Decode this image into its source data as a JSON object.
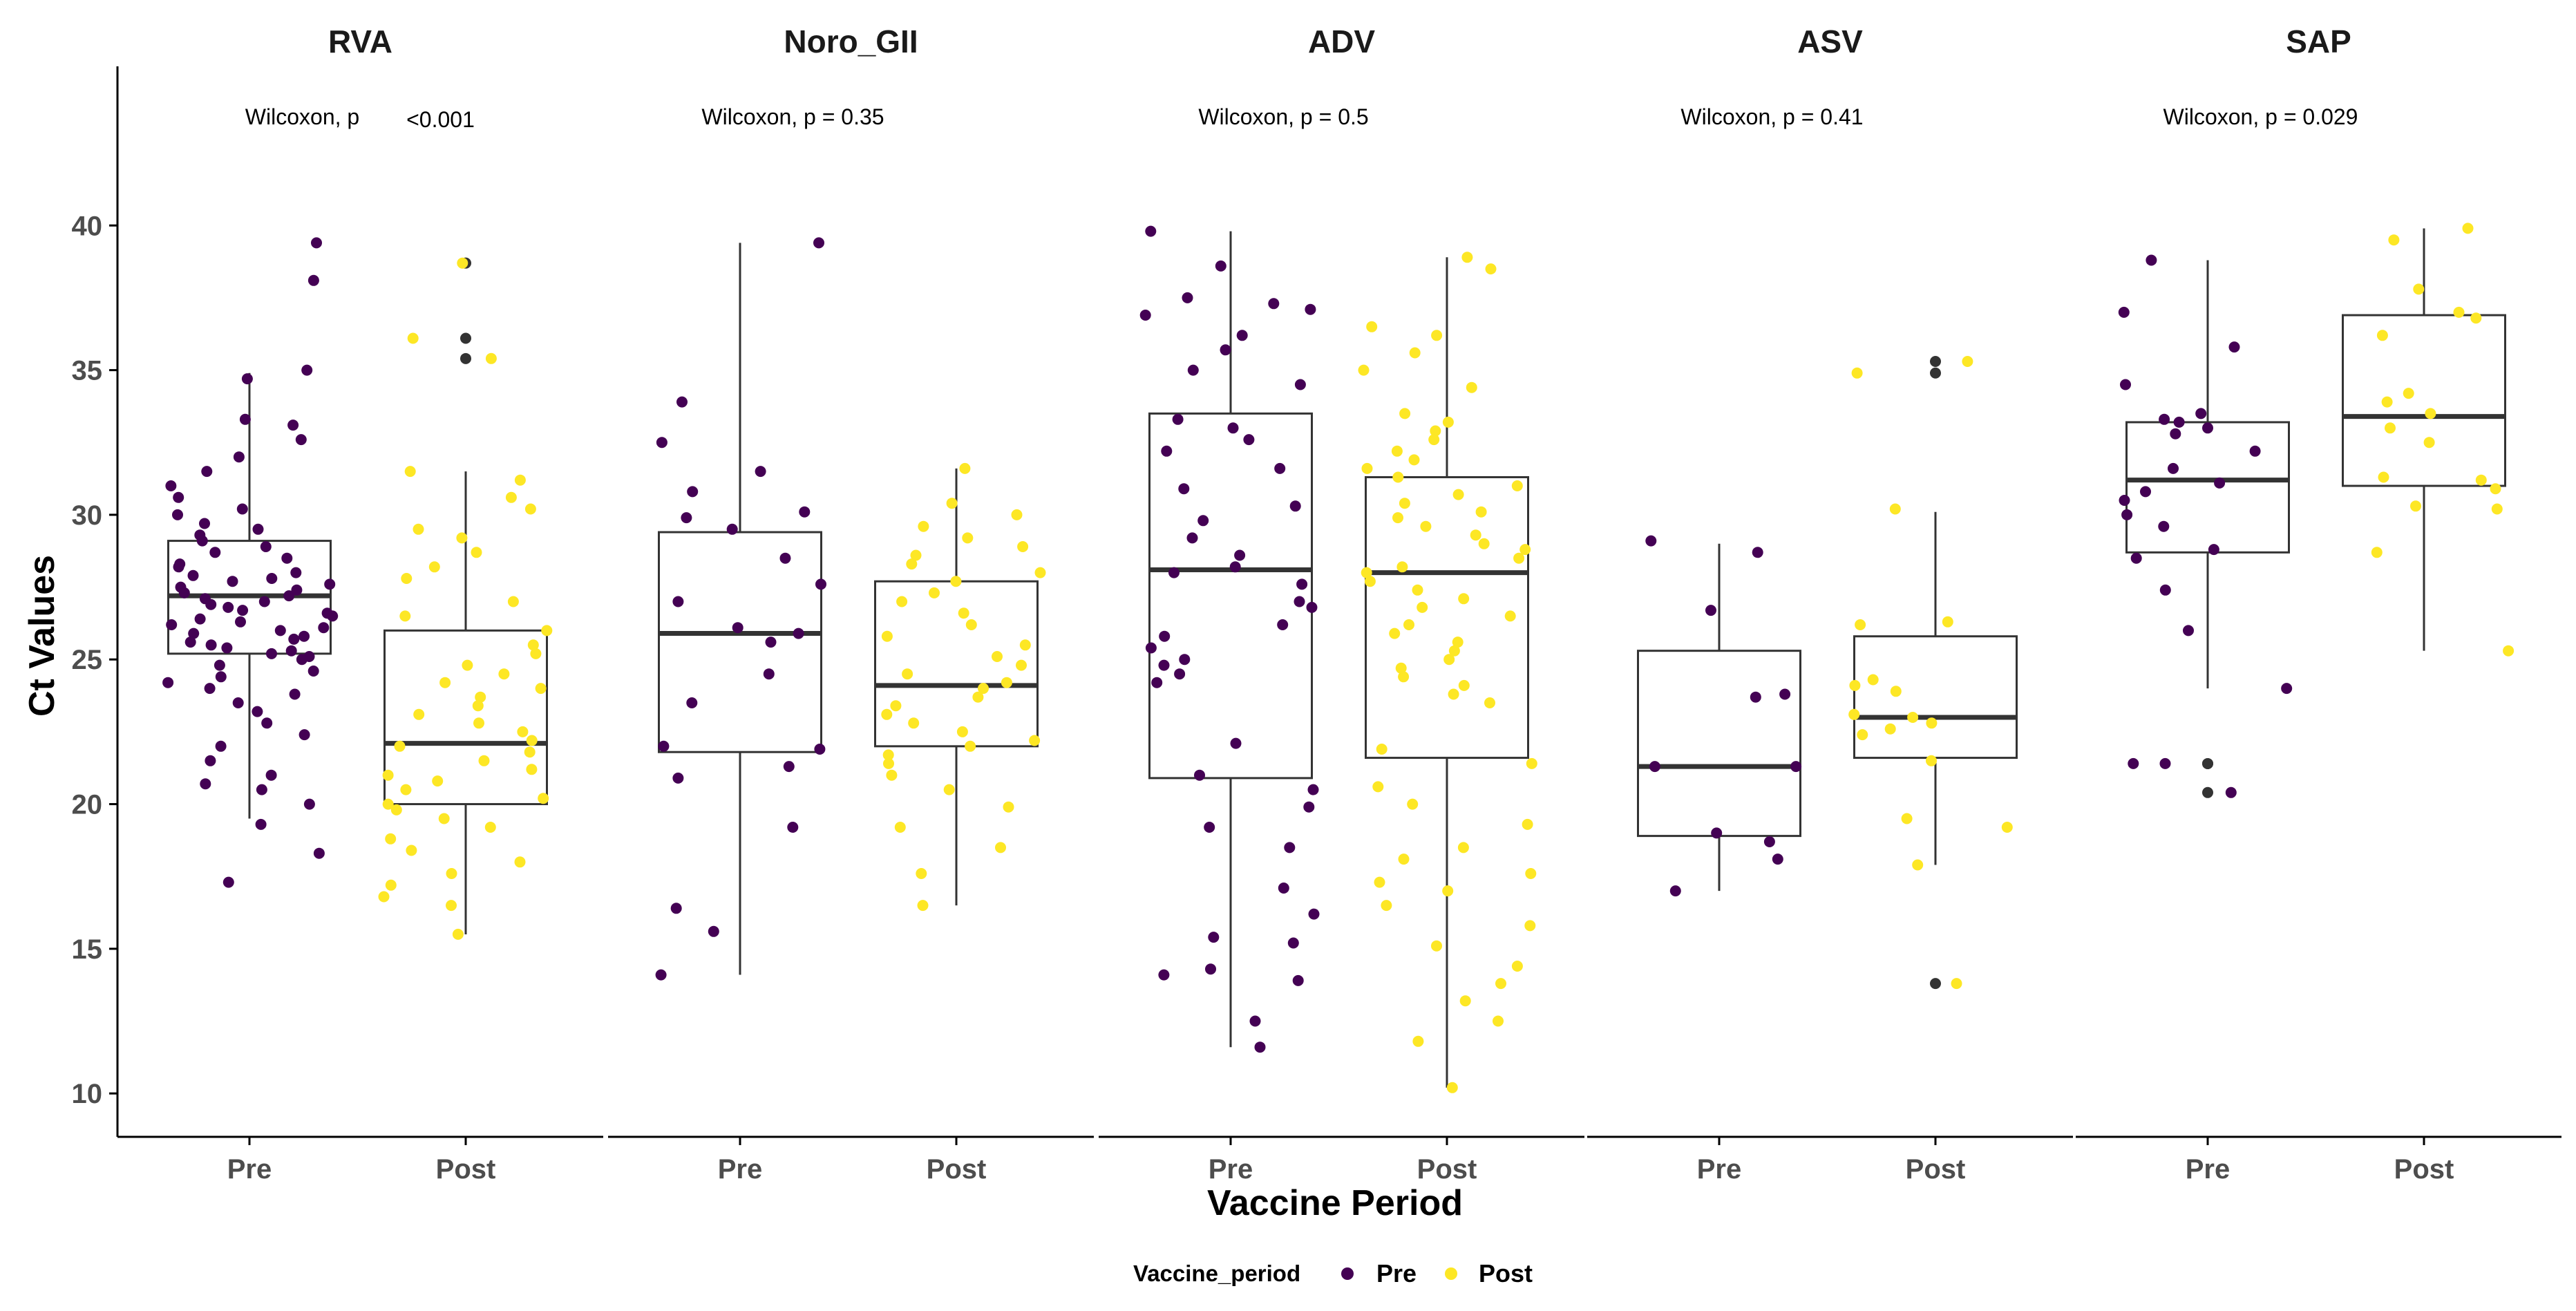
{
  "chart_data": {
    "type": "boxplot-with-jitter",
    "ylabel": "Ct Values",
    "xlabel": "Vaccine Period",
    "categories": [
      "Pre",
      "Post"
    ],
    "ylim": [
      8.5,
      45.5
    ],
    "yticks": [
      10,
      15,
      20,
      25,
      30,
      35,
      40
    ],
    "colors": {
      "Pre": "#440154",
      "Post": "#FDE725",
      "box": "#333333",
      "axis": "#000000"
    },
    "legend": {
      "title": "Vaccine_period",
      "items": [
        "Pre",
        "Post"
      ],
      "position": "bottom"
    },
    "panels": [
      {
        "title": "RVA",
        "test_label": "Wilcoxon, p",
        "test_value": "<0.001",
        "boxes": {
          "Pre": {
            "q1": 25.2,
            "median": 27.2,
            "q3": 29.1,
            "whisker_low": 19.5,
            "whisker_high": 34.9
          },
          "Post": {
            "q1": 20.0,
            "median": 22.1,
            "q3": 26.0,
            "whisker_low": 15.5,
            "whisker_high": 31.5
          }
        },
        "points": {
          "Pre": [
            39.4,
            38.1,
            35.0,
            34.7,
            33.3,
            33.1,
            32.6,
            32.0,
            31.5,
            31.0,
            30.6,
            30.2,
            30.0,
            29.7,
            29.5,
            29.3,
            29.1,
            28.9,
            28.7,
            28.5,
            28.3,
            28.2,
            28.0,
            27.9,
            27.8,
            27.7,
            27.6,
            27.5,
            27.4,
            27.3,
            27.2,
            27.1,
            27.0,
            26.9,
            26.8,
            26.7,
            26.6,
            26.5,
            26.4,
            26.3,
            26.2,
            26.1,
            26.0,
            25.9,
            25.8,
            25.7,
            25.6,
            25.5,
            25.4,
            25.3,
            25.2,
            25.1,
            25.0,
            24.8,
            24.6,
            24.4,
            24.2,
            24.0,
            23.8,
            23.5,
            23.2,
            22.8,
            22.4,
            22.0,
            21.5,
            21.0,
            20.7,
            20.5,
            20.0,
            19.3,
            18.3,
            17.3
          ],
          "Post": [
            38.7,
            36.1,
            35.4,
            31.5,
            31.2,
            30.6,
            30.2,
            29.5,
            29.2,
            28.7,
            28.2,
            27.8,
            27.0,
            26.5,
            26.0,
            25.5,
            25.2,
            24.8,
            24.5,
            24.2,
            24.0,
            23.7,
            23.4,
            23.1,
            22.8,
            22.5,
            22.2,
            22.0,
            21.8,
            21.5,
            21.2,
            21.0,
            20.8,
            20.5,
            20.2,
            20.0,
            19.8,
            19.5,
            19.2,
            18.8,
            18.4,
            18.0,
            17.6,
            17.2,
            16.8,
            16.5,
            15.5
          ]
        },
        "outliers": {
          "Pre": [],
          "Post": [
            38.7,
            36.1,
            35.4
          ]
        }
      },
      {
        "title": "Noro_GII",
        "test_label": "Wilcoxon, p = 0.35",
        "test_value": "",
        "boxes": {
          "Pre": {
            "q1": 21.8,
            "median": 25.9,
            "q3": 29.4,
            "whisker_low": 14.1,
            "whisker_high": 39.4
          },
          "Post": {
            "q1": 22.0,
            "median": 24.1,
            "q3": 27.7,
            "whisker_low": 16.5,
            "whisker_high": 31.6
          }
        },
        "points": {
          "Pre": [
            39.4,
            33.9,
            32.5,
            31.5,
            30.8,
            30.1,
            29.9,
            29.5,
            28.5,
            27.6,
            27.0,
            26.1,
            25.9,
            25.6,
            24.5,
            23.5,
            22.0,
            21.9,
            21.3,
            20.9,
            19.2,
            16.4,
            15.6,
            14.1
          ],
          "Post": [
            31.6,
            30.4,
            30.0,
            29.6,
            29.2,
            28.9,
            28.6,
            28.3,
            28.0,
            27.7,
            27.3,
            27.0,
            26.6,
            26.2,
            25.8,
            25.5,
            25.1,
            24.8,
            24.5,
            24.2,
            24.0,
            23.7,
            23.4,
            23.1,
            22.8,
            22.5,
            22.2,
            22.0,
            21.7,
            21.4,
            21.0,
            20.5,
            19.9,
            19.2,
            18.5,
            17.6,
            16.5
          ]
        },
        "outliers": {
          "Pre": [],
          "Post": []
        }
      },
      {
        "title": "ADV",
        "test_label": "Wilcoxon, p = 0.5",
        "test_value": "",
        "boxes": {
          "Pre": {
            "q1": 20.9,
            "median": 28.1,
            "q3": 33.5,
            "whisker_low": 11.6,
            "whisker_high": 39.8
          },
          "Post": {
            "q1": 21.6,
            "median": 28.0,
            "q3": 31.3,
            "whisker_low": 10.2,
            "whisker_high": 38.9
          }
        },
        "points": {
          "Pre": [
            39.8,
            38.6,
            37.5,
            37.3,
            37.1,
            36.9,
            36.2,
            35.7,
            35.0,
            34.5,
            33.3,
            33.0,
            32.6,
            32.2,
            31.6,
            30.9,
            30.3,
            29.8,
            29.2,
            28.6,
            28.2,
            28.0,
            27.6,
            27.0,
            26.8,
            26.2,
            25.8,
            25.4,
            25.0,
            24.8,
            24.5,
            24.2,
            22.1,
            21.0,
            20.5,
            19.9,
            19.2,
            18.5,
            17.1,
            16.2,
            15.4,
            15.2,
            14.3,
            14.1,
            13.9,
            12.5,
            11.6
          ],
          "Post": [
            38.9,
            38.5,
            36.5,
            36.2,
            35.6,
            35.0,
            34.4,
            33.5,
            33.2,
            32.9,
            32.6,
            32.2,
            31.9,
            31.6,
            31.3,
            31.0,
            30.7,
            30.4,
            30.1,
            29.9,
            29.6,
            29.3,
            29.0,
            28.8,
            28.5,
            28.2,
            28.0,
            27.7,
            27.4,
            27.1,
            26.8,
            26.5,
            26.2,
            25.9,
            25.6,
            25.3,
            25.0,
            24.7,
            24.4,
            24.1,
            23.8,
            23.5,
            21.9,
            21.4,
            20.6,
            20.0,
            19.3,
            18.5,
            18.1,
            17.6,
            17.3,
            17.0,
            16.5,
            15.8,
            15.1,
            14.4,
            13.8,
            13.2,
            12.5,
            11.8,
            10.2
          ]
        },
        "outliers": {
          "Pre": [],
          "Post": []
        }
      },
      {
        "title": "ASV",
        "test_label": "Wilcoxon, p = 0.41",
        "test_value": "",
        "boxes": {
          "Pre": {
            "q1": 18.9,
            "median": 21.3,
            "q3": 25.3,
            "whisker_low": 17.0,
            "whisker_high": 29.0
          },
          "Post": {
            "q1": 21.6,
            "median": 23.0,
            "q3": 25.8,
            "whisker_low": 17.9,
            "whisker_high": 30.1
          }
        },
        "points": {
          "Pre": [
            29.1,
            28.7,
            26.7,
            23.8,
            23.7,
            21.3,
            21.3,
            19.0,
            18.7,
            18.1,
            17.0
          ],
          "Post": [
            35.3,
            34.9,
            30.2,
            26.3,
            26.2,
            24.3,
            24.1,
            23.9,
            23.1,
            23.0,
            22.8,
            22.6,
            22.4,
            21.5,
            19.5,
            19.2,
            17.9,
            13.8
          ]
        },
        "outliers": {
          "Pre": [],
          "Post": [
            35.3,
            34.9,
            13.8
          ]
        }
      },
      {
        "title": "SAP",
        "test_label": "Wilcoxon, p = 0.029",
        "test_value": "",
        "boxes": {
          "Pre": {
            "q1": 28.7,
            "median": 31.2,
            "q3": 33.2,
            "whisker_low": 24.0,
            "whisker_high": 38.8
          },
          "Post": {
            "q1": 31.0,
            "median": 33.4,
            "q3": 36.9,
            "whisker_low": 25.3,
            "whisker_high": 39.9
          }
        },
        "points": {
          "Pre": [
            38.8,
            37.0,
            35.8,
            34.5,
            33.5,
            33.3,
            33.2,
            33.0,
            32.8,
            32.2,
            31.6,
            31.1,
            30.8,
            30.5,
            30.0,
            29.6,
            28.8,
            28.5,
            27.4,
            26.0,
            24.0,
            21.4,
            21.4,
            20.4
          ],
          "Post": [
            39.9,
            39.5,
            37.8,
            37.0,
            36.8,
            36.2,
            34.2,
            33.9,
            33.5,
            33.0,
            32.5,
            31.3,
            31.2,
            30.9,
            30.3,
            30.2,
            28.7,
            25.3
          ]
        },
        "outliers": {
          "Pre": [
            21.4,
            21.4,
            20.4
          ],
          "Post": []
        }
      }
    ]
  }
}
